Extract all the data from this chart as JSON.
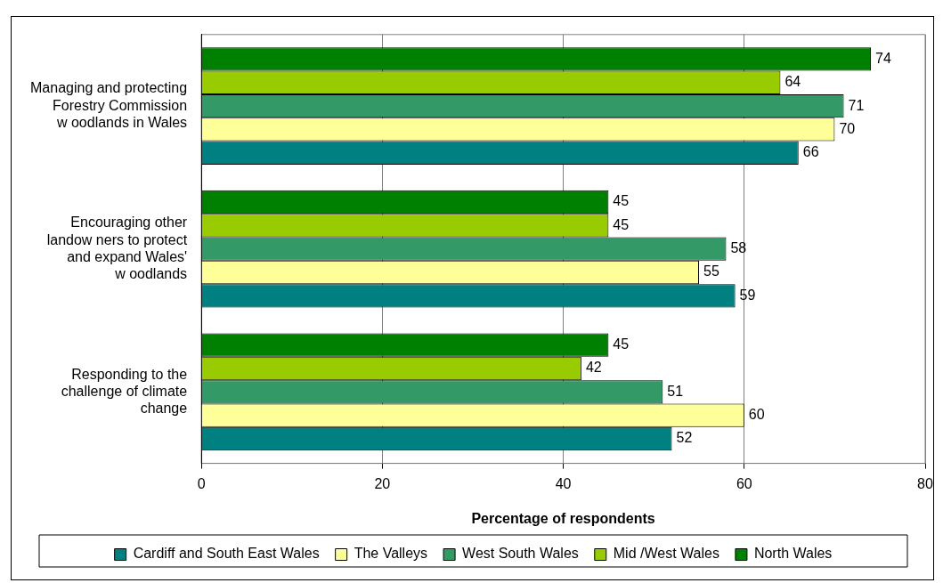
{
  "chart_data": {
    "type": "bar",
    "orientation": "horizontal",
    "xlabel": "Percentage of respondents",
    "categories": [
      "Managing and protecting\nForestry Commission\nw oodlands in Wales",
      "Encouraging other\nlandow ners to protect\nand expand Wales'\nw oodlands",
      "Responding to the\nchallenge of climate\nchange"
    ],
    "series": [
      {
        "name": "Cardiff and South East Wales",
        "color": "#008080",
        "values": [
          66,
          59,
          52
        ]
      },
      {
        "name": "The Valleys",
        "color": "#ffff99",
        "values": [
          70,
          55,
          60
        ]
      },
      {
        "name": "West South Wales",
        "color": "#339966",
        "values": [
          71,
          58,
          51
        ]
      },
      {
        "name": "Mid /West Wales",
        "color": "#99cc00",
        "values": [
          64,
          45,
          42
        ]
      },
      {
        "name": "North Wales",
        "color": "#008000",
        "values": [
          74,
          45,
          45
        ]
      }
    ],
    "xlim": [
      0,
      80
    ],
    "xticks": [
      0,
      20,
      40,
      60,
      80
    ],
    "grid": "x",
    "legend": "bottom",
    "data_labels": true
  }
}
